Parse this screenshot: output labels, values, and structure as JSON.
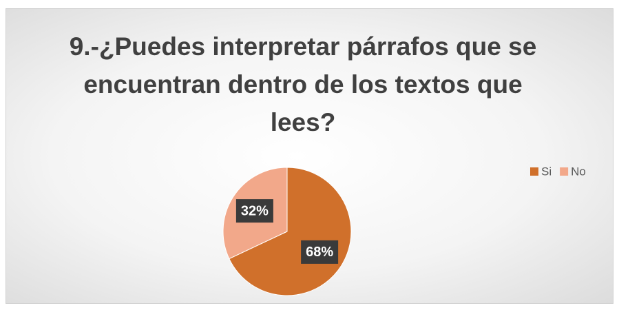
{
  "chart_data": {
    "type": "pie",
    "title": "9.-¿Puedes interpretar párrafos que se encuentran dentro de los textos que lees?",
    "categories": [
      "Si",
      "No"
    ],
    "values": [
      68,
      32
    ],
    "value_labels": [
      "68%",
      "32%"
    ],
    "colors": [
      "#d0702b",
      "#f2a88a"
    ],
    "legend": "right"
  }
}
